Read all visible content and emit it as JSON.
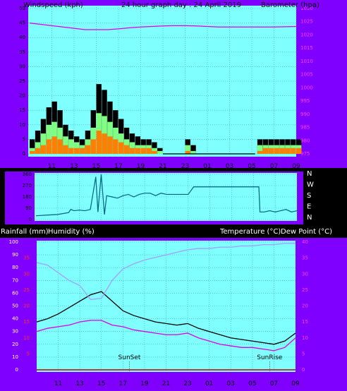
{
  "header": {
    "windspeed_label": "Windspeed (kph)",
    "title": "24 hour graph day : 24 April 2019",
    "barometer_label": "Barometer (hpa)",
    "rainfall_label": "Rainfall (mm)",
    "humidity_label": "Humidity (%)",
    "temperature_label": "Temperature (°C)",
    "dewpoint_label": "Dew Point (°C)"
  },
  "colors": {
    "panel": "#8000ff",
    "plot_bg": "#80ffff",
    "wind_gust": "#000000",
    "wind_avg": "#80ff80",
    "wind_low": "#ff8000",
    "barometer": "#e000e0",
    "direction": "#006080",
    "temperature": "#000000",
    "dewpoint": "#e000e0",
    "humidity": "#a0a0ff",
    "rain": "#c00000"
  },
  "x_ticks": [
    "11",
    "13",
    "15",
    "17",
    "19",
    "21",
    "23",
    "01",
    "03",
    "05",
    "07",
    "09"
  ],
  "chart_data": [
    {
      "type": "area",
      "name": "wind",
      "title": "24 hour graph day : 24 April 2019",
      "ylabel": "Windspeed (kph)",
      "ylabel_right": "Barometer (hpa)",
      "ylim": [
        0,
        50
      ],
      "y_ticks": [
        0,
        5,
        10,
        15,
        20,
        25,
        30,
        35,
        40,
        45,
        50
      ],
      "ylim_right": [
        975,
        1030
      ],
      "y_ticks_right": [
        975,
        980,
        985,
        990,
        995,
        1000,
        1005,
        1010,
        1015,
        1020,
        1025,
        1030
      ],
      "x_hours": [
        9,
        9.5,
        10,
        10.5,
        11,
        11.5,
        12,
        12.5,
        13,
        13.5,
        14,
        14.5,
        15,
        15.5,
        16,
        16.5,
        17,
        17.5,
        18,
        18.5,
        19,
        19.5,
        20,
        20.5,
        21,
        22,
        22.5,
        23,
        23.5,
        24,
        25,
        26,
        27,
        28,
        29,
        29.5,
        30,
        30.5,
        31,
        31.5,
        32,
        32.5,
        33
      ],
      "series": [
        {
          "name": "Wind gust",
          "values": [
            5,
            8,
            12,
            16,
            18,
            15,
            10,
            8,
            6,
            5,
            8,
            15,
            24,
            22,
            18,
            15,
            12,
            9,
            7,
            6,
            5,
            5,
            4,
            2,
            0,
            0,
            0,
            5,
            3,
            0,
            0,
            0,
            0,
            0,
            0,
            5,
            5,
            5,
            5,
            5,
            5,
            5,
            5
          ]
        },
        {
          "name": "Wind speed",
          "values": [
            2,
            4,
            7,
            10,
            11,
            9,
            6,
            5,
            4,
            3,
            5,
            9,
            14,
            13,
            11,
            9,
            7,
            5,
            4,
            3,
            3,
            3,
            2,
            1,
            0,
            0,
            0,
            3,
            1,
            0,
            0,
            0,
            0,
            0,
            0,
            3,
            3,
            3,
            3,
            3,
            3,
            3,
            3
          ]
        },
        {
          "name": "Wind low",
          "values": [
            1,
            2,
            3,
            5,
            6,
            5,
            3,
            2,
            2,
            2,
            3,
            5,
            8,
            7,
            6,
            5,
            4,
            3,
            2,
            2,
            2,
            2,
            1,
            0,
            0,
            0,
            0,
            1,
            0,
            0,
            0,
            0,
            0,
            0,
            0,
            1,
            2,
            2,
            2,
            2,
            2,
            2,
            2
          ]
        },
        {
          "name": "Barometer",
          "x_hours": [
            9,
            10,
            11,
            12,
            13,
            14,
            15,
            16,
            17,
            18,
            19,
            20,
            21,
            22,
            23,
            24,
            25,
            26,
            27,
            28,
            29,
            30,
            31,
            32,
            33
          ],
          "values": [
            1024.5,
            1024,
            1023.5,
            1023,
            1022.5,
            1022,
            1022,
            1022,
            1022.3,
            1022.7,
            1023,
            1023.2,
            1023.4,
            1023.5,
            1023.5,
            1023.4,
            1023.2,
            1023,
            1023,
            1023,
            1023,
            1023,
            1023,
            1023.1,
            1023.2
          ]
        }
      ]
    },
    {
      "type": "line",
      "name": "direction",
      "y_ticks": [
        0,
        90,
        180,
        270,
        360
      ],
      "right_labels": [
        "N",
        "W",
        "S",
        "E",
        "N"
      ],
      "ylim": [
        0,
        360
      ],
      "series": [
        {
          "name": "Wind direction",
          "x_hours": [
            9,
            10,
            11,
            12,
            12.2,
            12.5,
            13,
            13.5,
            14,
            14.5,
            14.7,
            15,
            15.3,
            15.5,
            16,
            16.5,
            17,
            17.5,
            18,
            18.5,
            19,
            19.5,
            20,
            20.5,
            21,
            22,
            23,
            23.5,
            24,
            25,
            26,
            27,
            28,
            29,
            29.5,
            29.6,
            30,
            30.5,
            31,
            31.5,
            32,
            32.5,
            33
          ],
          "values": [
            30,
            35,
            40,
            55,
            80,
            70,
            75,
            70,
            80,
            340,
            60,
            360,
            40,
            190,
            180,
            170,
            190,
            200,
            180,
            200,
            210,
            210,
            190,
            210,
            200,
            200,
            200,
            260,
            260,
            260,
            260,
            260,
            260,
            260,
            260,
            60,
            60,
            70,
            60,
            70,
            80,
            60,
            70
          ]
        }
      ]
    },
    {
      "type": "line",
      "name": "temperature-humidity",
      "ylabel_left": "Rainfall (mm) Humidity (%)",
      "ylabel_right": "Temperature (°C) Dew Point (°C)",
      "ylim": [
        0,
        100
      ],
      "y_ticks": [
        0,
        10,
        20,
        30,
        40,
        50,
        60,
        70,
        80,
        90,
        100
      ],
      "red_ticks": [
        5,
        10,
        15,
        20,
        25,
        30,
        35
      ],
      "ylim_right": [
        0,
        40
      ],
      "y_ticks_right": [
        0,
        5,
        10,
        15,
        20,
        25,
        30,
        35,
        40
      ],
      "x_hours": [
        9,
        10,
        11,
        12,
        13,
        14,
        15,
        16,
        17,
        18,
        19,
        20,
        21,
        22,
        23,
        24,
        25,
        26,
        27,
        28,
        29,
        30,
        31,
        32,
        33
      ],
      "series": [
        {
          "name": "Temperature",
          "values": [
            15,
            16,
            17.5,
            19.5,
            21.5,
            23.5,
            24.5,
            21.5,
            18.5,
            17,
            16,
            15,
            14.5,
            14,
            14.5,
            13,
            12,
            11,
            10,
            9.5,
            9,
            8.5,
            8,
            9,
            11.5
          ]
        },
        {
          "name": "Dew Point",
          "values": [
            12,
            13,
            13.5,
            14,
            15,
            15.5,
            15.5,
            14,
            13.5,
            12.5,
            12,
            11.5,
            11,
            11,
            11.5,
            10,
            9,
            8,
            7.5,
            7,
            7,
            6.5,
            6,
            7,
            10
          ]
        },
        {
          "name": "Humidity",
          "values": [
            84,
            82,
            76,
            70,
            66,
            55,
            56,
            70,
            79,
            83,
            86,
            88,
            90,
            92,
            94,
            95,
            95,
            96,
            96,
            97,
            97,
            98,
            98,
            99,
            99
          ]
        }
      ],
      "annotations": [
        {
          "label": "SunSet",
          "x_hour": 17.6
        },
        {
          "label": "SunRise",
          "x_hour": 30.6
        }
      ]
    }
  ]
}
